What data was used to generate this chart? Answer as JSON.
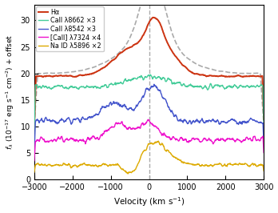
{
  "title": "",
  "xlabel": "Velocity (km s$^{-1}$)",
  "ylabel": "$f_{\\lambda}$ (10$^{-17}$ erg s$^{-1}$ cm$^{-2}$) + offset",
  "xlim": [
    -3000,
    3000
  ],
  "ylim": [
    0,
    33
  ],
  "yticks": [
    0,
    5,
    10,
    15,
    20,
    25,
    30
  ],
  "vline_x": 0,
  "legend_entries": [
    {
      "label": "Hα",
      "color": "#cc3311",
      "lw": 1.4
    },
    {
      "label": "CaII λ8662 ×3",
      "color": "#44cc99",
      "lw": 1.0
    },
    {
      "label": "CaII λ8542 ×3",
      "color": "#4455cc",
      "lw": 1.0
    },
    {
      "label": "[CaII] λ7324 ×4",
      "color": "#ee11cc",
      "lw": 1.0
    },
    {
      "label": "Na ID λ5896 ×2",
      "color": "#ddaa00",
      "lw": 1.0
    }
  ],
  "dashed_color": "#aaaaaa",
  "seed": 7,
  "offsets": [
    19.5,
    17.5,
    11.0,
    7.5,
    2.8
  ],
  "noise_scales": [
    0.25,
    0.55,
    0.75,
    0.65,
    0.45
  ]
}
